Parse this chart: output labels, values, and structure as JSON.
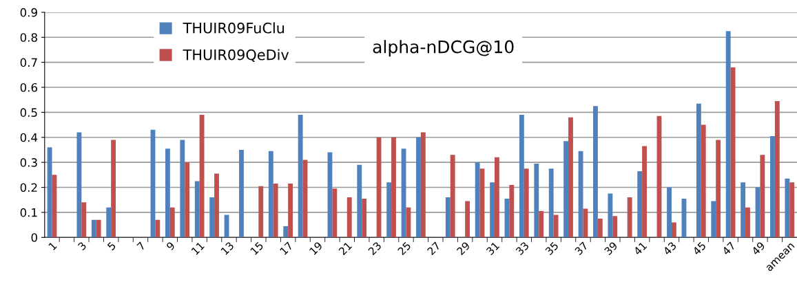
{
  "chart_data": {
    "type": "bar",
    "title": "alpha-nDCG@10",
    "categories": [
      "1",
      null,
      "3",
      null,
      "5",
      null,
      "7",
      null,
      "9",
      null,
      "11",
      null,
      "13",
      null,
      "15",
      null,
      "17",
      null,
      "19",
      null,
      "21",
      null,
      "23",
      null,
      "25",
      null,
      "27",
      null,
      "29",
      null,
      "31",
      null,
      "33",
      null,
      "35",
      null,
      "37",
      null,
      "39",
      null,
      "41",
      null,
      "43",
      null,
      "45",
      null,
      "47",
      null,
      "49",
      null,
      "amean"
    ],
    "series": [
      {
        "name": "THUIR09FuClu",
        "color": "#4f81bd",
        "values": [
          0.36,
          0,
          0.42,
          0.07,
          0.12,
          0,
          0,
          0.43,
          0.355,
          0.39,
          0.225,
          0.16,
          0.09,
          0.35,
          0,
          0.345,
          0.045,
          0.49,
          0,
          0.34,
          0,
          0.29,
          0,
          0.22,
          0.355,
          0.4,
          0,
          0.16,
          0,
          0.3,
          0.22,
          0.155,
          0.49,
          0.295,
          0.275,
          0.385,
          0.345,
          0.525,
          0.175,
          0,
          0.265,
          0,
          0.2,
          0.155,
          0.535,
          0.145,
          0.825,
          0.22,
          0.2,
          0.405,
          0.235
        ]
      },
      {
        "name": "THUIR09QeDiv",
        "color": "#c0504d",
        "values": [
          0.25,
          0,
          0.14,
          0.07,
          0.39,
          0,
          0,
          0.07,
          0.12,
          0.3,
          0.49,
          0.255,
          0,
          0,
          0.205,
          0.215,
          0.215,
          0.31,
          0,
          0.195,
          0.16,
          0.155,
          0.4,
          0.4,
          0.12,
          0.42,
          0,
          0.33,
          0.145,
          0.275,
          0.32,
          0.21,
          0.275,
          0.105,
          0.09,
          0.48,
          0.115,
          0.075,
          0.085,
          0.16,
          0.365,
          0.485,
          0.06,
          0,
          0.45,
          0.39,
          0.68,
          0.12,
          0.33,
          0.545,
          0.22
        ]
      }
    ],
    "ylim": [
      0,
      0.9
    ],
    "yticks": [
      0,
      0.1,
      0.2,
      0.3,
      0.4,
      0.5,
      0.6,
      0.7,
      0.8,
      0.9
    ],
    "grid": "y",
    "legend": "top left"
  }
}
